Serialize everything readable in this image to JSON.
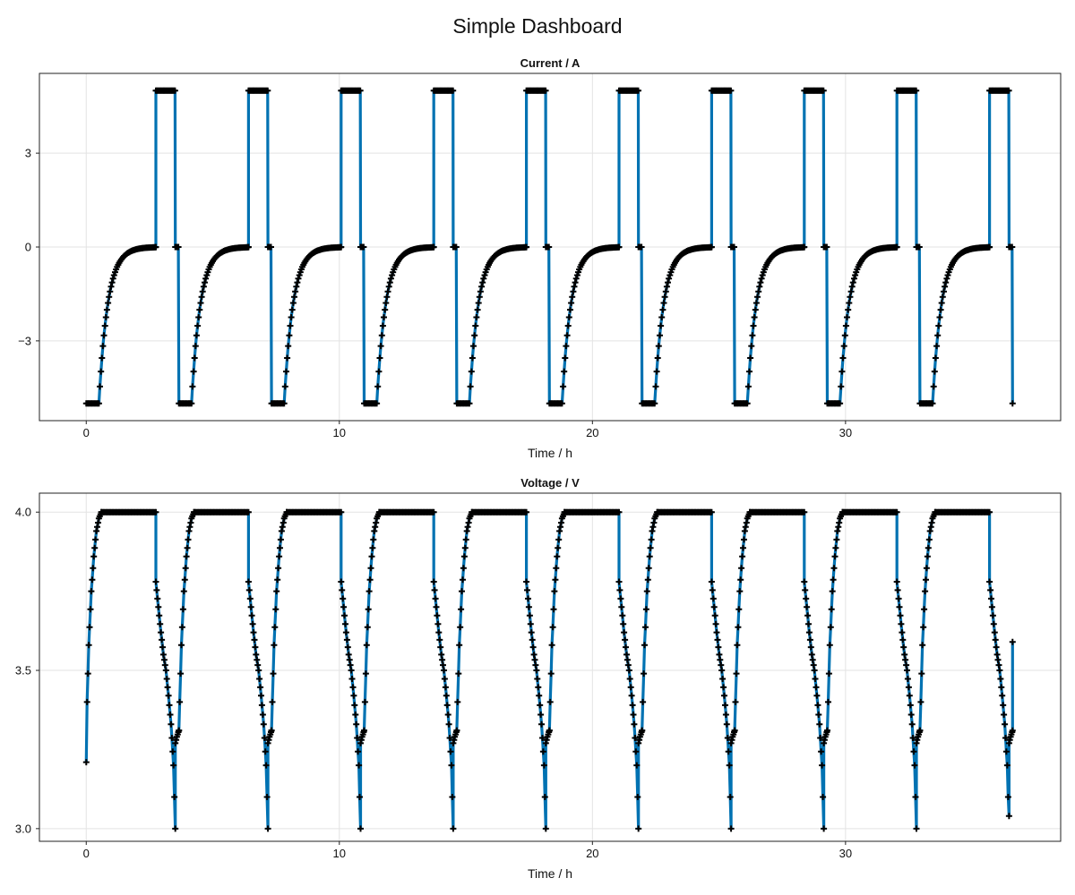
{
  "figure": {
    "title": "Simple Dashboard"
  },
  "style": {
    "line_color": "#0072b2",
    "marker_color": "#000000",
    "marker": "cross"
  },
  "chart_data": [
    {
      "type": "line",
      "title": "Current  /  A",
      "xlabel": "Time  /  h",
      "ylabel": "",
      "xlim": [
        -1.85,
        38.5
      ],
      "ylim": [
        -5.55,
        5.55
      ],
      "xticks": [
        0,
        10,
        20,
        30
      ],
      "yticks": [
        -3,
        0,
        3
      ],
      "ytick_labels": [
        "−3",
        "0",
        "3"
      ],
      "grid": true,
      "legend": "none",
      "cycle": {
        "count": 10,
        "period_h": 3.66,
        "cc_discharge_current_A": -5,
        "cc_discharge_duration_h": 0.5,
        "cv_decay_until_h": 2.75,
        "cc_charge_current_A": 5,
        "cc_charge_end_h": 3.52,
        "rest_end_h": 3.66,
        "decay_tau_h": 0.35,
        "end_time_h": 36.6
      }
    },
    {
      "type": "line",
      "title": "Voltage  /  V",
      "xlabel": "Time  /  h",
      "ylabel": "",
      "xlim": [
        -1.85,
        38.5
      ],
      "ylim": [
        2.96,
        4.06
      ],
      "xticks": [
        0,
        10,
        20,
        30
      ],
      "yticks": [
        3.0,
        3.5,
        4.0
      ],
      "ytick_labels": [
        "3.0",
        "3.5",
        "4.0"
      ],
      "grid": true,
      "legend": "none",
      "cycle_shape": {
        "rise": [
          [
            0.0,
            3.31
          ],
          [
            0.1,
            3.58
          ],
          [
            0.2,
            3.75
          ],
          [
            0.3,
            3.86
          ],
          [
            0.4,
            3.94
          ],
          [
            0.5,
            3.98
          ],
          [
            0.6,
            4.0
          ]
        ],
        "plateau": [
          [
            0.6,
            4.0
          ],
          [
            2.75,
            4.0
          ]
        ],
        "drop": [
          [
            2.75,
            3.78
          ],
          [
            2.85,
            3.7
          ],
          [
            2.95,
            3.62
          ],
          [
            3.05,
            3.55
          ],
          [
            3.15,
            3.5
          ],
          [
            3.25,
            3.42
          ],
          [
            3.35,
            3.33
          ],
          [
            3.45,
            3.2
          ],
          [
            3.52,
            3.0
          ]
        ],
        "relax": [
          [
            3.52,
            3.27
          ],
          [
            3.58,
            3.29
          ],
          [
            3.64,
            3.305
          ],
          [
            3.66,
            3.31
          ]
        ]
      },
      "first_point": [
        0.0,
        3.21
      ],
      "last_point": [
        36.6,
        3.59
      ],
      "last_cycle_min": 3.04
    }
  ]
}
